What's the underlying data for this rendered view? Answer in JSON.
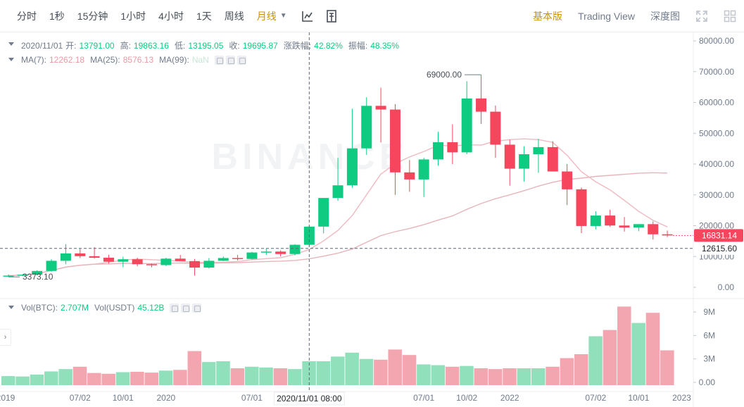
{
  "toolbar": {
    "timeframes": [
      "分时",
      "1秒",
      "15分钟",
      "1小时",
      "4小时",
      "1天",
      "周线",
      "月线"
    ],
    "active_timeframe": "月线",
    "views": [
      "基本版",
      "Trading View",
      "深度图"
    ],
    "active_view": "基本版"
  },
  "legend": {
    "date": "2020/11/01",
    "open_label": "开:",
    "open": "13791.00",
    "high_label": "高:",
    "high": "19863.16",
    "low_label": "低:",
    "low": "13195.05",
    "close_label": "收:",
    "close": "19695.87",
    "change_label": "涨跌幅:",
    "change": "42.82%",
    "amplitude_label": "振幅:",
    "amplitude": "48.35%",
    "ma7_label": "MA(7):",
    "ma7": "12262.18",
    "ma25_label": "MA(25):",
    "ma25": "8576.13",
    "ma99_label": "MA(99):",
    "ma99": "NaN",
    "vol_btc_label": "Vol(BTC):",
    "vol_btc": "2.707M",
    "vol_usdt_label": "Vol(USDT)",
    "vol_usdt": "45.12B"
  },
  "watermark": "BINANCE",
  "colors": {
    "up": "#0ecb81",
    "down": "#f6465d",
    "up_vol": "#8fe0bb",
    "down_vol": "#f4a6b0",
    "ma7": "#f0b8c0",
    "ma25": "#e8b4bc"
  },
  "chart_data": {
    "type": "candlestick",
    "price_axis": {
      "ticks": [
        "0.00",
        "10000.00",
        "20000.00",
        "30000.00",
        "40000.00",
        "50000.00",
        "60000.00",
        "70000.00",
        "80000.00"
      ],
      "ylim": [
        0,
        80000
      ]
    },
    "volume_axis": {
      "ticks": [
        "0.00",
        "3M",
        "6M",
        "9M"
      ],
      "ylim": [
        0,
        10000000
      ]
    },
    "x_ticks": [
      "2019",
      "07/02",
      "10/01",
      "2020",
      "07/01",
      "21",
      "07/01",
      "10/02",
      "2022",
      "07/02",
      "10/01",
      "2023"
    ],
    "crosshair_date_label": "2020/11/01 08:00",
    "crosshair_price_label": "12615.60",
    "last_price_label": "16831.14",
    "max_annotation": "69000.00",
    "min_annotation": "3373.10",
    "candles": [
      {
        "o": 3500,
        "h": 4200,
        "l": 3373.1,
        "c": 3800,
        "v": 800000
      },
      {
        "o": 3800,
        "h": 4300,
        "l": 3600,
        "c": 4100,
        "v": 750000
      },
      {
        "o": 4100,
        "h": 5500,
        "l": 3900,
        "c": 5300,
        "v": 1000000
      },
      {
        "o": 5300,
        "h": 9100,
        "l": 5100,
        "c": 8600,
        "v": 1400000
      },
      {
        "o": 8600,
        "h": 14000,
        "l": 7500,
        "c": 11000,
        "v": 1700000
      },
      {
        "o": 11000,
        "h": 12500,
        "l": 9500,
        "c": 10100,
        "v": 2000000
      },
      {
        "o": 10100,
        "h": 13000,
        "l": 9300,
        "c": 9600,
        "v": 1200000
      },
      {
        "o": 9600,
        "h": 10600,
        "l": 7700,
        "c": 8300,
        "v": 1100000
      },
      {
        "o": 8300,
        "h": 9900,
        "l": 6500,
        "c": 9100,
        "v": 1300000
      },
      {
        "o": 9100,
        "h": 9600,
        "l": 6800,
        "c": 7500,
        "v": 1350000
      },
      {
        "o": 7500,
        "h": 7700,
        "l": 6500,
        "c": 7200,
        "v": 1250000
      },
      {
        "o": 7200,
        "h": 9600,
        "l": 6900,
        "c": 9300,
        "v": 1500000
      },
      {
        "o": 9300,
        "h": 10500,
        "l": 8500,
        "c": 8500,
        "v": 1600000
      },
      {
        "o": 8500,
        "h": 9200,
        "l": 3800,
        "c": 6400,
        "v": 4000000
      },
      {
        "o": 6400,
        "h": 9500,
        "l": 6100,
        "c": 8600,
        "v": 2600000
      },
      {
        "o": 8600,
        "h": 10000,
        "l": 8500,
        "c": 9500,
        "v": 2700000
      },
      {
        "o": 9500,
        "h": 10500,
        "l": 8700,
        "c": 9200,
        "v": 1800000
      },
      {
        "o": 9200,
        "h": 11500,
        "l": 9000,
        "c": 11300,
        "v": 2000000
      },
      {
        "o": 11300,
        "h": 12500,
        "l": 10500,
        "c": 11600,
        "v": 1900000
      },
      {
        "o": 11600,
        "h": 12000,
        "l": 10000,
        "c": 10800,
        "v": 1800000
      },
      {
        "o": 10800,
        "h": 14000,
        "l": 10400,
        "c": 13800,
        "v": 1700000
      },
      {
        "o": 13800,
        "h": 19863.16,
        "l": 13195.05,
        "c": 19695.87,
        "v": 2707000
      },
      {
        "o": 19700,
        "h": 29000,
        "l": 17500,
        "c": 29000,
        "v": 2700000
      },
      {
        "o": 29000,
        "h": 42000,
        "l": 28100,
        "c": 33100,
        "v": 3300000
      },
      {
        "o": 33100,
        "h": 58000,
        "l": 32300,
        "c": 45100,
        "v": 3800000
      },
      {
        "o": 45100,
        "h": 61700,
        "l": 43000,
        "c": 58900,
        "v": 3000000
      },
      {
        "o": 58900,
        "h": 64800,
        "l": 47000,
        "c": 57700,
        "v": 2900000
      },
      {
        "o": 57700,
        "h": 59500,
        "l": 30000,
        "c": 37300,
        "v": 4200000
      },
      {
        "o": 37300,
        "h": 41300,
        "l": 31000,
        "c": 35000,
        "v": 3500000
      },
      {
        "o": 35000,
        "h": 42000,
        "l": 29300,
        "c": 41500,
        "v": 2300000
      },
      {
        "o": 41500,
        "h": 50500,
        "l": 39500,
        "c": 47100,
        "v": 2200000
      },
      {
        "o": 47100,
        "h": 52900,
        "l": 40000,
        "c": 43800,
        "v": 2000000
      },
      {
        "o": 43800,
        "h": 66900,
        "l": 43200,
        "c": 61300,
        "v": 2100000
      },
      {
        "o": 61300,
        "h": 69000,
        "l": 53000,
        "c": 57000,
        "v": 1800000
      },
      {
        "o": 57000,
        "h": 59000,
        "l": 42000,
        "c": 46300,
        "v": 1700000
      },
      {
        "o": 46300,
        "h": 47900,
        "l": 33000,
        "c": 38500,
        "v": 1800000
      },
      {
        "o": 38500,
        "h": 45800,
        "l": 34300,
        "c": 43200,
        "v": 1800000
      },
      {
        "o": 43200,
        "h": 48200,
        "l": 37200,
        "c": 45500,
        "v": 1800000
      },
      {
        "o": 45500,
        "h": 47400,
        "l": 37600,
        "c": 37600,
        "v": 2000000
      },
      {
        "o": 37600,
        "h": 40000,
        "l": 26700,
        "c": 31800,
        "v": 3100000
      },
      {
        "o": 31800,
        "h": 32400,
        "l": 17600,
        "c": 19900,
        "v": 3600000
      },
      {
        "o": 19900,
        "h": 24700,
        "l": 18800,
        "c": 23300,
        "v": 5900000
      },
      {
        "o": 23300,
        "h": 25200,
        "l": 19600,
        "c": 20050,
        "v": 6700000
      },
      {
        "o": 20050,
        "h": 22800,
        "l": 18100,
        "c": 19400,
        "v": 9700000
      },
      {
        "o": 19400,
        "h": 20500,
        "l": 18200,
        "c": 20500,
        "v": 7600000
      },
      {
        "o": 20500,
        "h": 21400,
        "l": 15500,
        "c": 17200,
        "v": 8900000
      },
      {
        "o": 17200,
        "h": 18400,
        "l": 16300,
        "c": 16831.14,
        "v": 4100000
      }
    ]
  }
}
